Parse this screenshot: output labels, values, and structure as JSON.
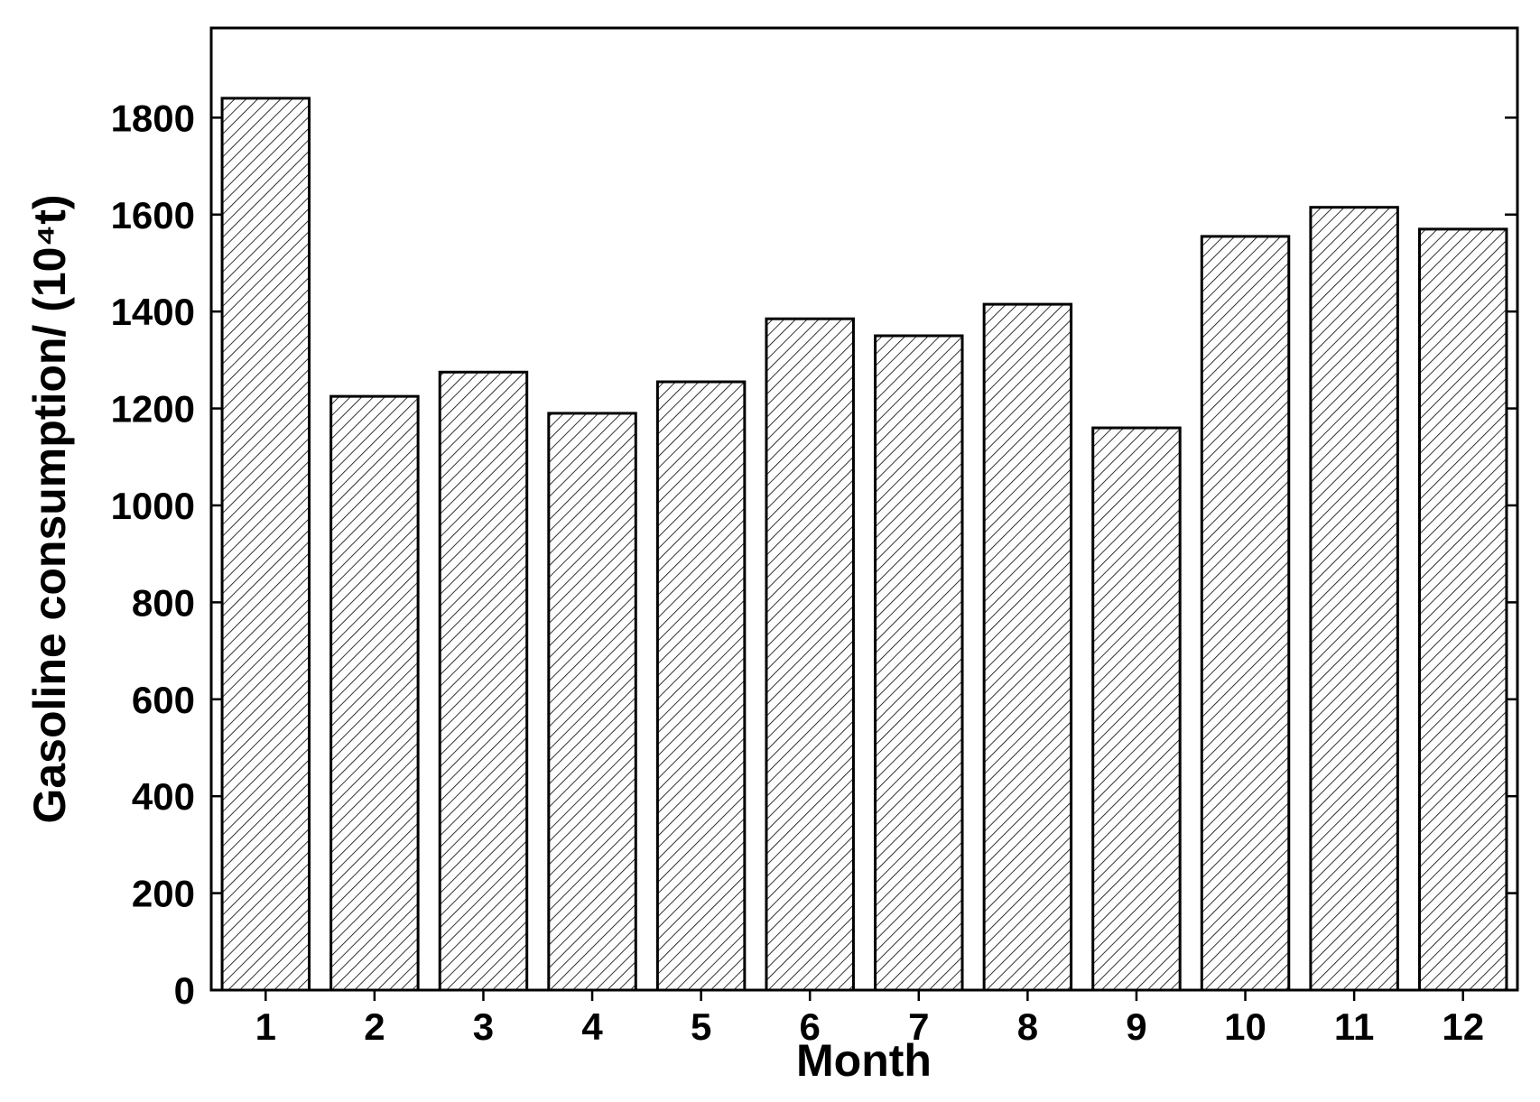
{
  "chart_data": {
    "type": "bar",
    "xlabel": "Month",
    "ylabel": "Gasoline consumption/ (10⁴t)",
    "categories": [
      "1",
      "2",
      "3",
      "4",
      "5",
      "6",
      "7",
      "8",
      "9",
      "10",
      "11",
      "12"
    ],
    "values": [
      1840,
      1225,
      1275,
      1190,
      1255,
      1385,
      1350,
      1415,
      1160,
      1555,
      1615,
      1570
    ],
    "color": "#000000",
    "ylim": [
      0,
      1985
    ],
    "yticks": [
      0,
      200,
      400,
      600,
      800,
      1000,
      1200,
      1400,
      1600,
      1800
    ],
    "grid": false
  }
}
